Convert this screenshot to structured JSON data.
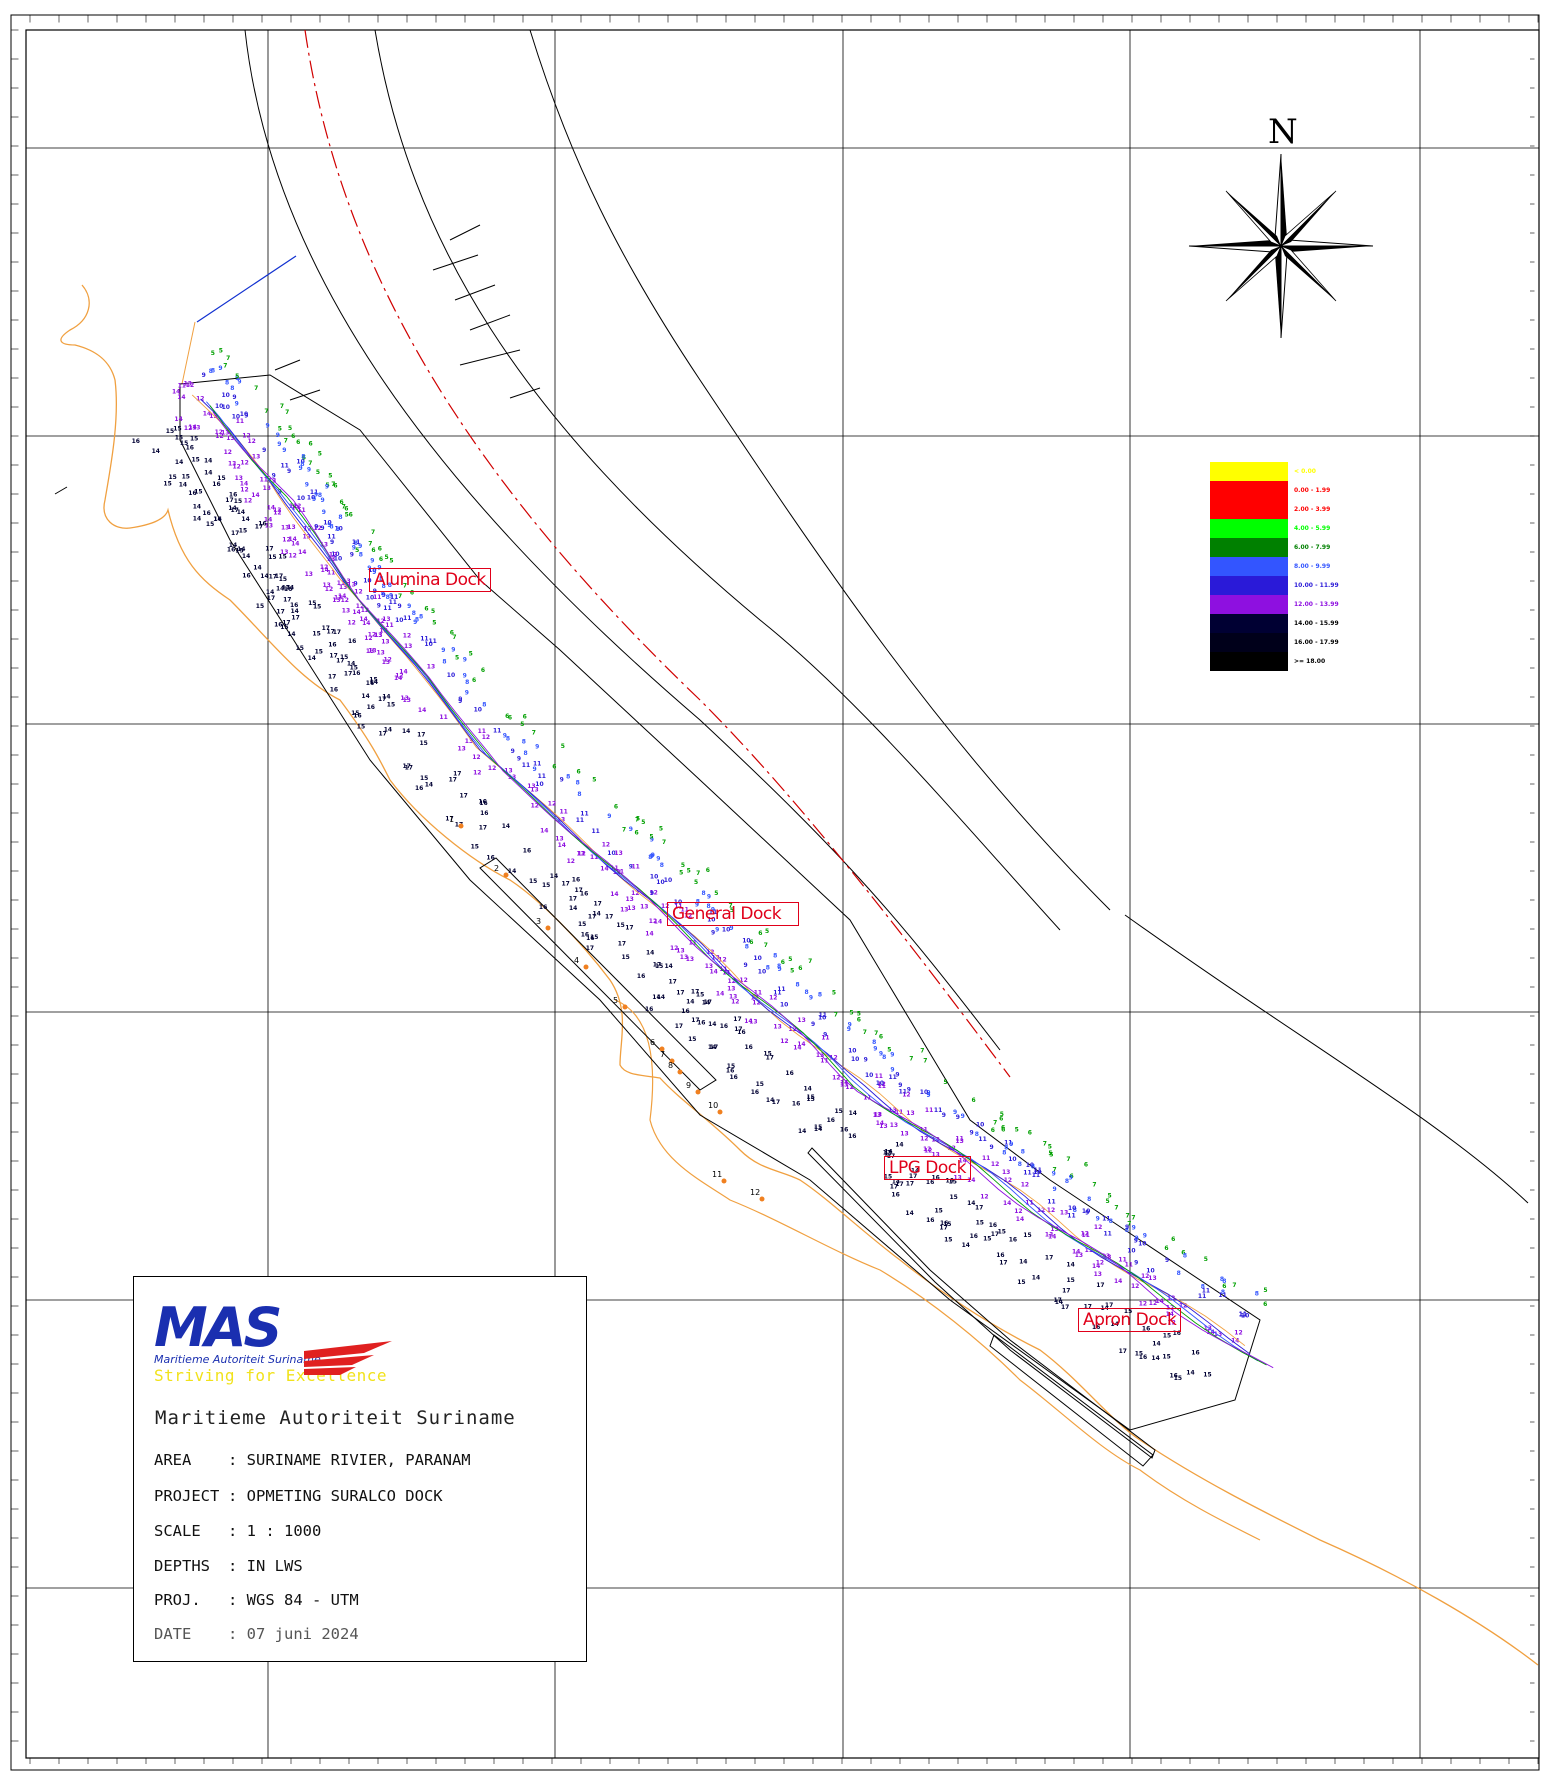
{
  "map": {
    "north_label": "N",
    "docks": [
      {
        "name": "Alumina Dock"
      },
      {
        "name": "General Dock"
      },
      {
        "name": "LPG Dock"
      },
      {
        "name": "Apron Dock"
      }
    ],
    "legend": [
      {
        "label": "< 0.00",
        "color": "#ffff00"
      },
      {
        "label": "0.00 - 1.99",
        "color": "#ff0000"
      },
      {
        "label": "2.00 - 3.99",
        "color": "#ff0000"
      },
      {
        "label": "4.00 - 5.99",
        "color": "#00ff00"
      },
      {
        "label": "6.00 - 7.99",
        "color": "#008000"
      },
      {
        "label": "8.00 - 9.99",
        "color": "#3355ff"
      },
      {
        "label": "10.00 - 11.99",
        "color": "#2a1ad8"
      },
      {
        "label": "12.00 - 13.99",
        "color": "#8e10e0"
      },
      {
        "label": "14.00 - 15.99",
        "color": "#000033"
      },
      {
        "label": "16.00 - 17.99",
        "color": "#00001a"
      },
      {
        "label": ">= 18.00",
        "color": "#000000"
      }
    ],
    "point_labels": [
      "1",
      "2",
      "3",
      "4",
      "5",
      "6",
      "7",
      "8",
      "9",
      "10",
      "11",
      "12"
    ]
  },
  "title_block": {
    "logo_text": "MAS",
    "logo_subtitle": "Maritieme Autoriteit Suriname",
    "slogan": "Striving for Excellence",
    "organisation": "Maritieme Autoriteit Suriname",
    "rows": [
      {
        "key": "AREA",
        "value": ": SURINAME RIVIER, PARANAM"
      },
      {
        "key": "PROJECT",
        "value": ": OPMETING SURALCO DOCK"
      },
      {
        "key": "SCALE",
        "value": ": 1 : 1000"
      },
      {
        "key": "DEPTHS",
        "value": ": IN LWS"
      },
      {
        "key": "PROJ.",
        "value": ": WGS 84 - UTM"
      },
      {
        "key": "DATE",
        "value": ": 07 juni 2024"
      }
    ]
  }
}
